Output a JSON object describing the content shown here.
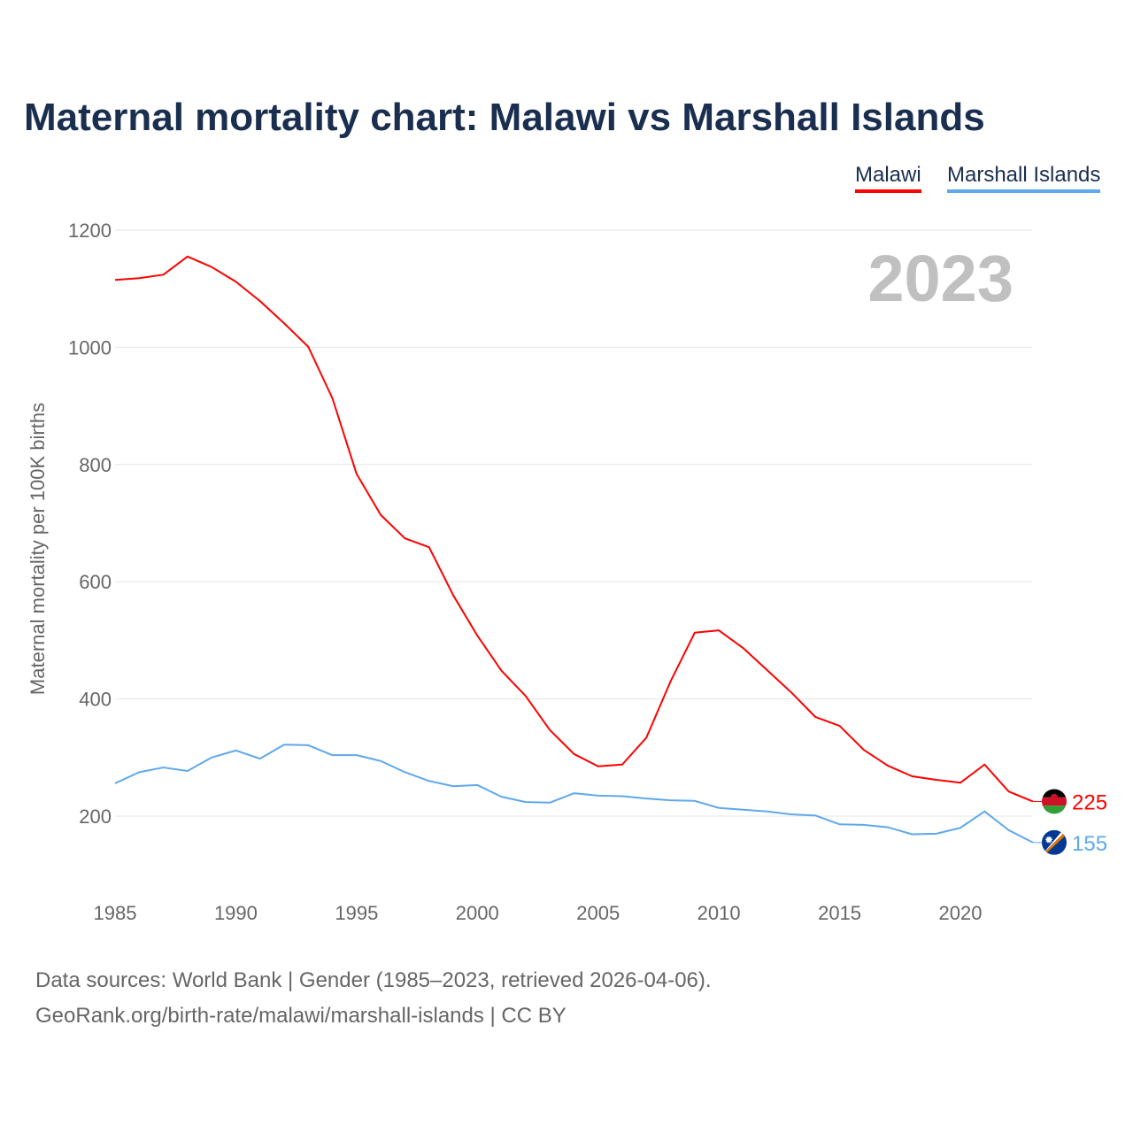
{
  "chart_data": {
    "type": "line",
    "title": "Maternal mortality chart: Malawi vs Marshall Islands",
    "ylabel": "Maternal mortality per 100K births",
    "xlabel": "",
    "year_label": "2023",
    "xlim": [
      1985,
      2023
    ],
    "ylim": [
      100,
      1200
    ],
    "yticks": [
      200,
      400,
      600,
      800,
      1000,
      1200
    ],
    "xticks": [
      1985,
      1990,
      1995,
      2000,
      2005,
      2010,
      2015,
      2020
    ],
    "grid": true,
    "legend_position": "top-right",
    "x": [
      1985,
      1986,
      1987,
      1988,
      1989,
      1990,
      1991,
      1992,
      1993,
      1994,
      1995,
      1996,
      1997,
      1998,
      1999,
      2000,
      2001,
      2002,
      2003,
      2004,
      2005,
      2006,
      2007,
      2008,
      2009,
      2010,
      2011,
      2012,
      2013,
      2014,
      2015,
      2016,
      2017,
      2018,
      2019,
      2020,
      2021,
      2022,
      2023
    ],
    "series": [
      {
        "name": "Malawi",
        "color": "#ff0000",
        "end_label": "225",
        "flag": "malawi-flag",
        "values": [
          1115,
          1118,
          1124,
          1155,
          1137,
          1112,
          1079,
          1041,
          1001,
          913,
          784,
          714,
          674,
          659,
          577,
          508,
          448,
          405,
          347,
          306,
          285,
          288,
          334,
          430,
          513,
          517,
          487,
          449,
          411,
          369,
          354,
          313,
          286,
          268,
          262,
          257,
          288,
          242,
          225
        ]
      },
      {
        "name": "Marshall Islands",
        "color": "#5fa8ec",
        "end_label": "155",
        "flag": "marshall-islands-flag",
        "values": [
          256,
          275,
          283,
          277,
          300,
          312,
          298,
          322,
          321,
          304,
          304,
          294,
          275,
          260,
          251,
          253,
          233,
          224,
          223,
          239,
          235,
          234,
          230,
          227,
          226,
          214,
          211,
          208,
          203,
          201,
          186,
          185,
          181,
          169,
          170,
          180,
          208,
          176,
          155
        ]
      }
    ]
  },
  "footer": {
    "line1": "Data sources: World Bank | Gender (1985–2023, retrieved 2026-04-06).",
    "line2": "GeoRank.org/birth-rate/malawi/marshall-islands | CC BY"
  }
}
